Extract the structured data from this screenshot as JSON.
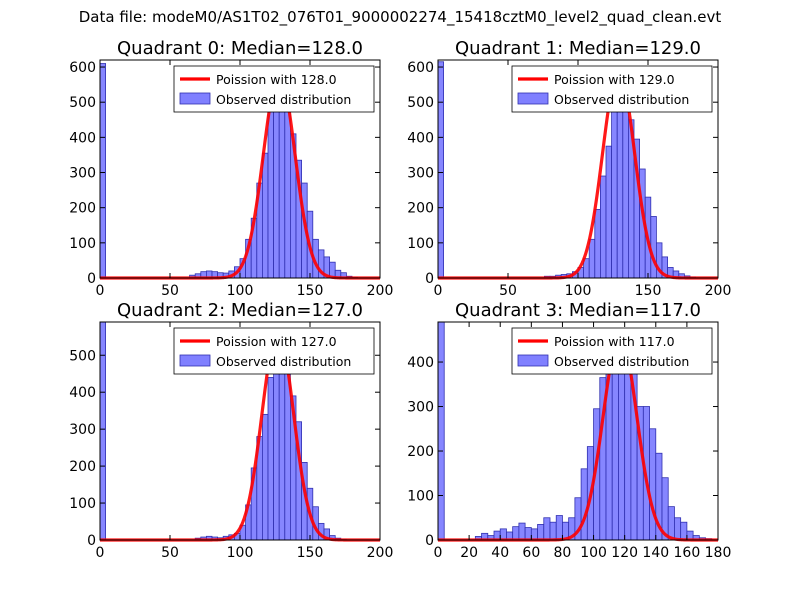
{
  "suptitle": "Data file: modeM0/AS1T02_076T01_9000002274_15418cztM0_level2_quad_clean.evt",
  "colors": {
    "bar_fill": "#8080ff",
    "bar_edge": "#3030b0",
    "curve": "#ff0000"
  },
  "chart_data": [
    {
      "type": "bar",
      "title": "Quadrant 0: Median=128.0",
      "xlim": [
        0,
        200
      ],
      "ylim": [
        0,
        620
      ],
      "xticks": [
        0,
        50,
        100,
        150,
        200
      ],
      "yticks": [
        0,
        100,
        200,
        300,
        400,
        500,
        600
      ],
      "bin_width": 4,
      "bin_starts": [
        0,
        4,
        8,
        12,
        16,
        20,
        24,
        28,
        32,
        36,
        40,
        44,
        48,
        52,
        56,
        60,
        64,
        68,
        72,
        76,
        80,
        84,
        88,
        92,
        96,
        100,
        104,
        108,
        112,
        116,
        120,
        124,
        128,
        132,
        136,
        140,
        144,
        148,
        152,
        156,
        160,
        164,
        168,
        172,
        176,
        180,
        184,
        188,
        192,
        196
      ],
      "values": [
        610,
        0,
        0,
        0,
        0,
        0,
        0,
        0,
        0,
        0,
        0,
        0,
        0,
        0,
        0,
        0,
        8,
        12,
        18,
        20,
        18,
        15,
        14,
        20,
        32,
        55,
        110,
        170,
        270,
        355,
        490,
        570,
        560,
        540,
        410,
        335,
        270,
        190,
        110,
        80,
        60,
        45,
        22,
        15,
        5,
        2,
        0,
        0,
        0,
        0
      ],
      "poisson_mean": 128.0,
      "poisson_peak": 580,
      "legend": {
        "location": "top-right",
        "curve_label": "Poission with 128.0",
        "bar_label": "Observed distribution"
      }
    },
    {
      "type": "bar",
      "title": "Quadrant 1: Median=129.0",
      "xlim": [
        0,
        200
      ],
      "ylim": [
        0,
        620
      ],
      "xticks": [
        0,
        50,
        100,
        150,
        200
      ],
      "yticks": [
        0,
        100,
        200,
        300,
        400,
        500,
        600
      ],
      "bin_width": 4,
      "bin_starts": [
        0,
        4,
        8,
        12,
        16,
        20,
        24,
        28,
        32,
        36,
        40,
        44,
        48,
        52,
        56,
        60,
        64,
        68,
        72,
        76,
        80,
        84,
        88,
        92,
        96,
        100,
        104,
        108,
        112,
        116,
        120,
        124,
        128,
        132,
        136,
        140,
        144,
        148,
        152,
        156,
        160,
        164,
        168,
        172,
        176,
        180,
        184,
        188,
        192,
        196
      ],
      "values": [
        615,
        0,
        0,
        0,
        0,
        0,
        0,
        0,
        0,
        0,
        0,
        0,
        0,
        0,
        0,
        0,
        0,
        0,
        0,
        5,
        5,
        8,
        10,
        12,
        18,
        30,
        55,
        110,
        195,
        290,
        375,
        490,
        570,
        540,
        450,
        395,
        310,
        230,
        175,
        100,
        60,
        30,
        20,
        12,
        6,
        3,
        0,
        0,
        0,
        0
      ],
      "poisson_mean": 129.0,
      "poisson_peak": 590,
      "legend": {
        "location": "top-right",
        "curve_label": "Poission with 129.0",
        "bar_label": "Observed distribution"
      }
    },
    {
      "type": "bar",
      "title": "Quadrant 2: Median=127.0",
      "xlim": [
        0,
        200
      ],
      "ylim": [
        0,
        590
      ],
      "xticks": [
        0,
        50,
        100,
        150,
        200
      ],
      "yticks": [
        0,
        100,
        200,
        300,
        400,
        500
      ],
      "bin_width": 4,
      "bin_starts": [
        0,
        4,
        8,
        12,
        16,
        20,
        24,
        28,
        32,
        36,
        40,
        44,
        48,
        52,
        56,
        60,
        64,
        68,
        72,
        76,
        80,
        84,
        88,
        92,
        96,
        100,
        104,
        108,
        112,
        116,
        120,
        124,
        128,
        132,
        136,
        140,
        144,
        148,
        152,
        156,
        160,
        164,
        168,
        172,
        176,
        180,
        184,
        188,
        192,
        196
      ],
      "values": [
        590,
        0,
        0,
        0,
        0,
        0,
        0,
        0,
        0,
        0,
        0,
        0,
        0,
        0,
        0,
        0,
        0,
        5,
        8,
        10,
        8,
        6,
        10,
        14,
        18,
        40,
        95,
        195,
        280,
        340,
        440,
        520,
        560,
        530,
        390,
        320,
        210,
        140,
        90,
        45,
        30,
        12,
        5,
        2,
        0,
        0,
        0,
        0,
        0,
        0
      ],
      "poisson_mean": 127.0,
      "poisson_peak": 565,
      "legend": {
        "location": "top-right",
        "curve_label": "Poission with 127.0",
        "bar_label": "Observed distribution"
      }
    },
    {
      "type": "bar",
      "title": "Quadrant 3: Median=117.0",
      "xlim": [
        0,
        180
      ],
      "ylim": [
        0,
        490
      ],
      "xticks": [
        0,
        20,
        40,
        60,
        80,
        100,
        120,
        140,
        160,
        180
      ],
      "yticks": [
        0,
        100,
        200,
        300,
        400
      ],
      "bin_width": 4,
      "bin_starts": [
        0,
        4,
        8,
        12,
        16,
        20,
        24,
        28,
        32,
        36,
        40,
        44,
        48,
        52,
        56,
        60,
        64,
        68,
        72,
        76,
        80,
        84,
        88,
        92,
        96,
        100,
        104,
        108,
        112,
        116,
        120,
        124,
        128,
        132,
        136,
        140,
        144,
        148,
        152,
        156,
        160,
        164,
        168,
        172,
        176
      ],
      "values": [
        490,
        0,
        0,
        0,
        0,
        0,
        8,
        15,
        10,
        20,
        25,
        18,
        30,
        38,
        28,
        25,
        35,
        50,
        40,
        55,
        40,
        50,
        95,
        160,
        210,
        295,
        365,
        430,
        440,
        470,
        455,
        415,
        300,
        300,
        250,
        195,
        140,
        75,
        50,
        40,
        20,
        10,
        5,
        3,
        0
      ],
      "poisson_mean": 117.0,
      "poisson_peak": 460,
      "legend": {
        "location": "top-right",
        "curve_label": "Poission with 117.0",
        "bar_label": "Observed distribution"
      }
    }
  ]
}
